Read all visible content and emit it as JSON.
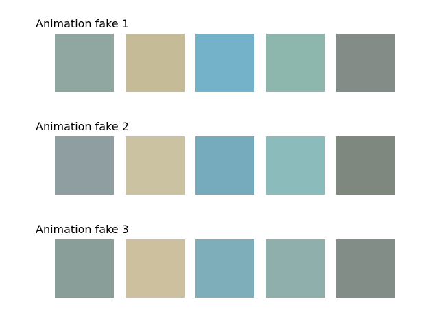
{
  "rows": [
    {
      "title": "Animation fake 1",
      "swatches": [
        "#90a6a1",
        "#c5bb96",
        "#74b2c9",
        "#8db6ac",
        "#838c86"
      ]
    },
    {
      "title": "Animation fake 2",
      "swatches": [
        "#8f9ea0",
        "#cac2a1",
        "#75abbd",
        "#8cbbbb",
        "#7e887f"
      ]
    },
    {
      "title": "Animation fake 3",
      "swatches": [
        "#899d99",
        "#cdc09e",
        "#7eaeba",
        "#8eafac",
        "#838d88"
      ]
    }
  ]
}
